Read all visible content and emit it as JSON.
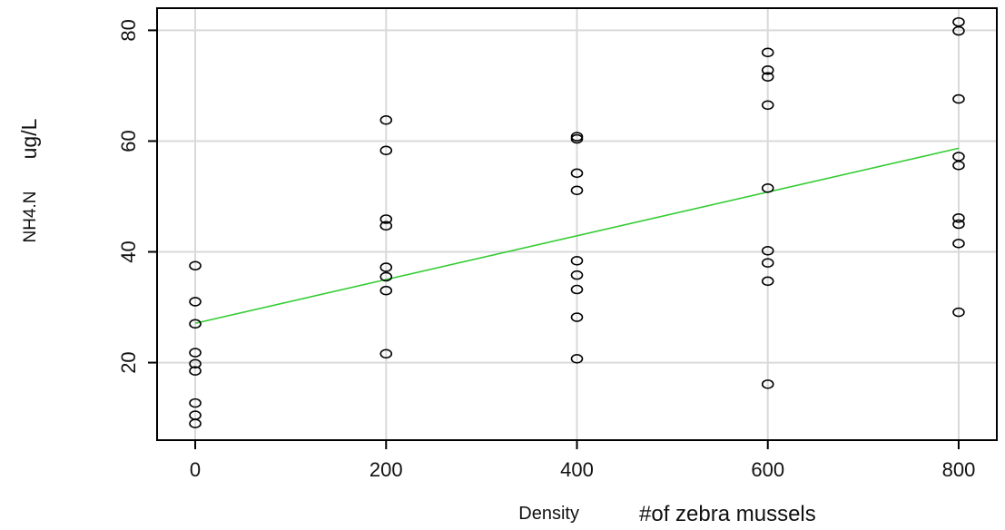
{
  "chart_data": {
    "type": "scatter",
    "xlabel": {
      "main": "Density",
      "sub": "#of zebra mussels"
    },
    "ylabel": {
      "main": "NH4.N",
      "sub": "ug/L"
    },
    "xlim": [
      -40,
      840
    ],
    "ylim": [
      6,
      84
    ],
    "xticks": [
      0,
      200,
      400,
      600,
      800
    ],
    "yticks": [
      20,
      40,
      60,
      80
    ],
    "grid": true,
    "colors": {
      "points": "#000000",
      "fit_line": "#33cc33",
      "grid": "#d9d9d9",
      "frame": "#000000"
    },
    "points": [
      {
        "x": 0,
        "y": 37.5
      },
      {
        "x": 0,
        "y": 31.0
      },
      {
        "x": 0,
        "y": 27.0
      },
      {
        "x": 0,
        "y": 21.8
      },
      {
        "x": 0,
        "y": 19.8
      },
      {
        "x": 0,
        "y": 18.5
      },
      {
        "x": 0,
        "y": 12.7
      },
      {
        "x": 0,
        "y": 10.5
      },
      {
        "x": 0,
        "y": 9.0
      },
      {
        "x": 200,
        "y": 63.8
      },
      {
        "x": 200,
        "y": 58.3
      },
      {
        "x": 200,
        "y": 45.9
      },
      {
        "x": 200,
        "y": 44.7
      },
      {
        "x": 200,
        "y": 37.2
      },
      {
        "x": 200,
        "y": 35.5
      },
      {
        "x": 200,
        "y": 33.0
      },
      {
        "x": 200,
        "y": 21.6
      },
      {
        "x": 400,
        "y": 60.8
      },
      {
        "x": 400,
        "y": 60.4
      },
      {
        "x": 400,
        "y": 54.2
      },
      {
        "x": 400,
        "y": 51.1
      },
      {
        "x": 400,
        "y": 38.4
      },
      {
        "x": 400,
        "y": 35.8
      },
      {
        "x": 400,
        "y": 33.2
      },
      {
        "x": 400,
        "y": 28.2
      },
      {
        "x": 400,
        "y": 20.7
      },
      {
        "x": 600,
        "y": 76.0
      },
      {
        "x": 600,
        "y": 72.8
      },
      {
        "x": 600,
        "y": 71.6
      },
      {
        "x": 600,
        "y": 66.5
      },
      {
        "x": 600,
        "y": 51.5
      },
      {
        "x": 600,
        "y": 40.2
      },
      {
        "x": 600,
        "y": 38.0
      },
      {
        "x": 600,
        "y": 34.7
      },
      {
        "x": 600,
        "y": 16.1
      },
      {
        "x": 800,
        "y": 81.5
      },
      {
        "x": 800,
        "y": 79.9
      },
      {
        "x": 800,
        "y": 67.6
      },
      {
        "x": 800,
        "y": 57.2
      },
      {
        "x": 800,
        "y": 55.6
      },
      {
        "x": 800,
        "y": 46.1
      },
      {
        "x": 800,
        "y": 45.0
      },
      {
        "x": 800,
        "y": 41.5
      },
      {
        "x": 800,
        "y": 29.1
      }
    ],
    "fit_line": {
      "x": [
        0,
        800
      ],
      "y": [
        27.1,
        58.7
      ]
    }
  }
}
